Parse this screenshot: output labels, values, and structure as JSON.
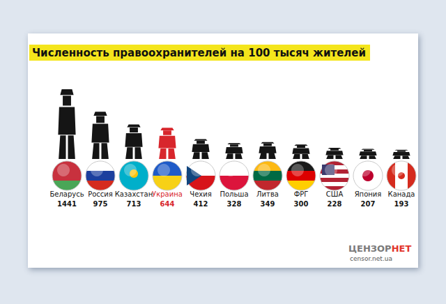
{
  "chart_data": {
    "type": "bar",
    "title": "Численность правоохранителей на 100 тысяч жителей",
    "categories": [
      "Беларусь",
      "Россия",
      "Казахстан",
      "Украина",
      "Чехия",
      "Польша",
      "Литва",
      "ФРГ",
      "США",
      "Япония",
      "Канада"
    ],
    "values": [
      1441,
      975,
      713,
      644,
      412,
      328,
      349,
      300,
      228,
      207,
      193
    ],
    "colors": [
      "#151515",
      "#151515",
      "#151515",
      "#d8262c",
      "#151515",
      "#151515",
      "#151515",
      "#151515",
      "#151515",
      "#151515",
      "#151515"
    ],
    "data_labels": true,
    "tick_labels": "x",
    "grid": false,
    "source": {
      "name": [
        "ЦЕНЗОР",
        "НЕТ"
      ],
      "url": "censor.net.ua"
    }
  }
}
